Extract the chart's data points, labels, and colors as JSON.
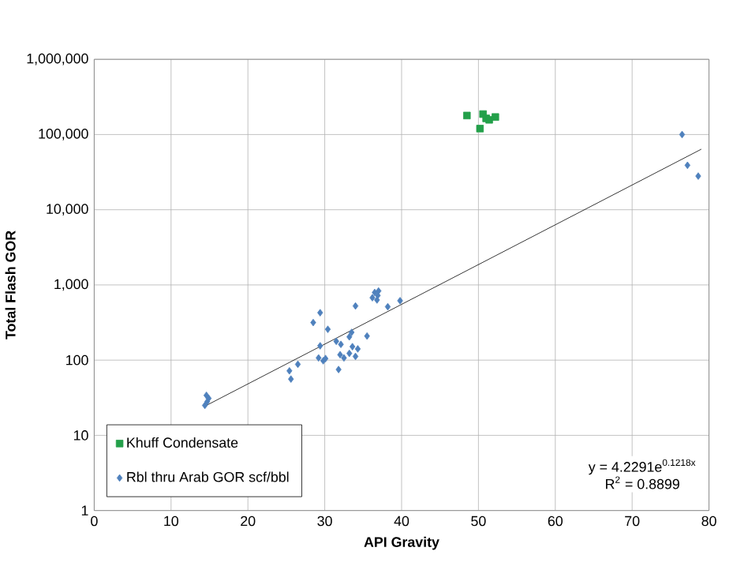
{
  "chart_data": {
    "type": "scatter",
    "xlabel": "API Gravity",
    "ylabel": "Total Flash GOR",
    "series": [
      {
        "name": "Khuff Condensate",
        "color": "#23a04a",
        "marker": "square",
        "x": [
          48.5,
          50.2,
          50.6,
          51.0,
          51.4,
          52.2
        ],
        "values": [
          179000,
          120000,
          187000,
          164000,
          157000,
          171000
        ]
      },
      {
        "name": "Rbl thru Arab GOR scf/bbl",
        "color": "#4f81bd",
        "marker": "diamond",
        "x": [
          14.6,
          14.9,
          14.4,
          14.7,
          25.4,
          26.5,
          25.6,
          28.5,
          29.4,
          30.4,
          29.4,
          29.2,
          29.8,
          30.1,
          31.5,
          32.1,
          31.8,
          32.0,
          32.5,
          33.2,
          33.5,
          33.2,
          33.6,
          34.3,
          34.0,
          34.0,
          35.5,
          36.2,
          36.5,
          36.9,
          36.8,
          37.0,
          38.2,
          39.8,
          76.5,
          77.2,
          78.6
        ],
        "values": [
          34,
          31,
          25,
          28,
          72,
          88,
          56,
          316,
          427,
          257,
          155,
          107,
          98,
          105,
          178,
          162,
          75,
          118,
          107,
          204,
          234,
          123,
          151,
          141,
          112,
          525,
          209,
          676,
          794,
          724,
          631,
          832,
          513,
          617,
          100000,
          39000,
          28000
        ]
      },
      {
        "type": "line",
        "color": "#000000",
        "marker": "none",
        "x": [
          14.5,
          79
        ],
        "values": [
          24.7,
          63800
        ]
      }
    ],
    "xlim": [
      0,
      80
    ],
    "xticks": [
      0,
      10,
      20,
      30,
      40,
      50,
      60,
      70,
      80
    ],
    "ylim": [
      1,
      1000000
    ],
    "yticks": [
      1,
      10,
      100,
      {
        "value": 1000,
        "label": "1,000"
      },
      {
        "value": 10000,
        "label": "10,000"
      },
      {
        "value": 100000,
        "label": "100,000"
      },
      {
        "value": 1000000,
        "label": "1,000,000"
      }
    ],
    "log": "y",
    "grid": true,
    "legend": "bottom left",
    "annotations": [
      "y = 4.2291e$^{0.1218x}$",
      "R$^{2}$ = 0.8899"
    ]
  }
}
